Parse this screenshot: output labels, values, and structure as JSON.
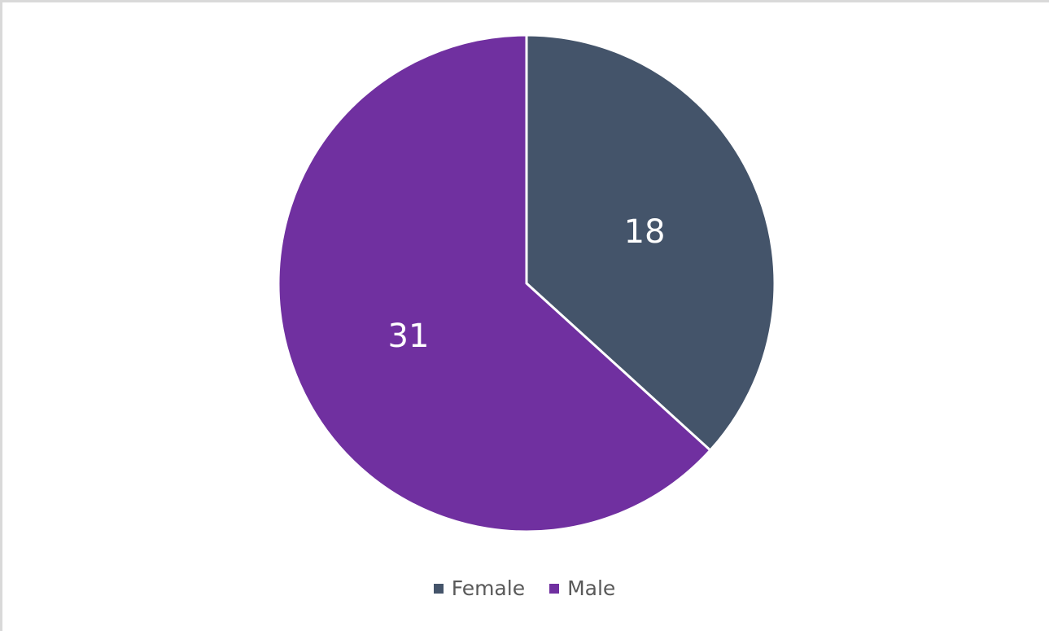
{
  "chart_data": {
    "type": "pie",
    "title": "",
    "categories": [
      "Female",
      "Male"
    ],
    "values": [
      18,
      31
    ],
    "colors": [
      "#44546a",
      "#7030a0"
    ],
    "data_labels": [
      "18",
      "31"
    ],
    "start_angle_deg": 0,
    "direction": "clockwise",
    "legend_position": "bottom",
    "slice_border_color": "#ffffff"
  },
  "legend": {
    "items": [
      {
        "label": "Female",
        "color": "#44546a"
      },
      {
        "label": "Male",
        "color": "#7030a0"
      }
    ]
  }
}
